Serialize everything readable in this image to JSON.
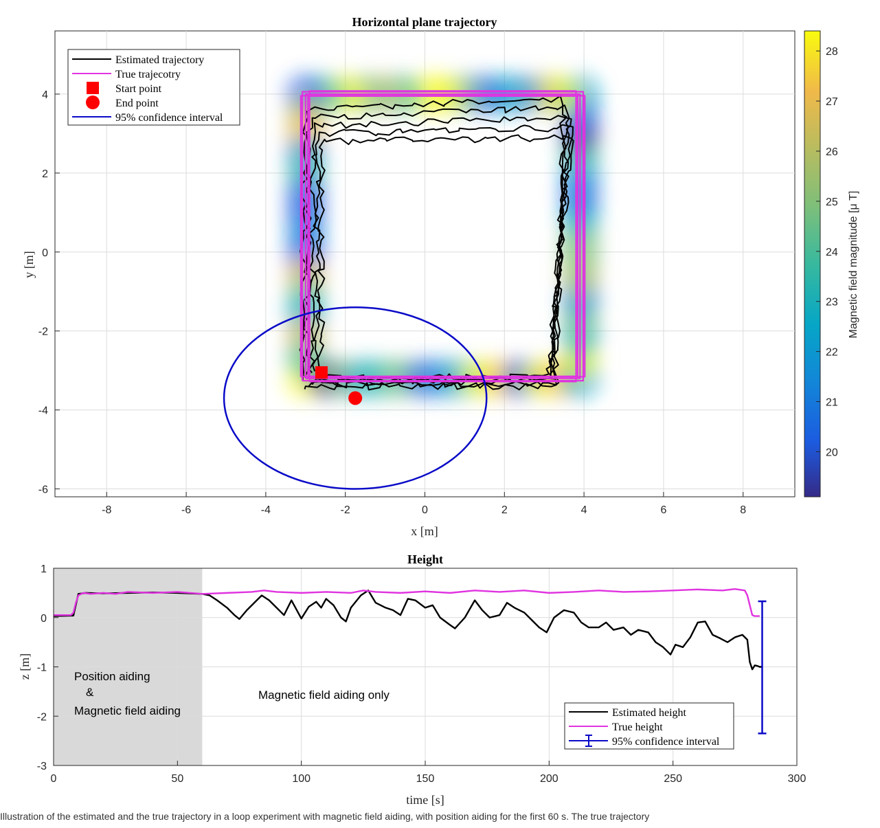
{
  "chart_data": [
    {
      "type": "scatter",
      "title": "Horizontal plane trajectory",
      "xlabel": "x [m]",
      "ylabel": "y [m]",
      "xlim": [
        -9.3,
        9.3
      ],
      "ylim": [
        -6.2,
        5.6
      ],
      "xticks": [
        "-8",
        "-6",
        "-4",
        "-2",
        "0",
        "2",
        "4",
        "6",
        "8"
      ],
      "yticks": [
        "-6",
        "-4",
        "-2",
        "0",
        "2",
        "4"
      ],
      "grid": true,
      "legend_position": "top-left",
      "legend": {
        "estimated": "Estimated trajectory",
        "true": "True trajecotry",
        "start": "Start point",
        "end": "End point",
        "ci": "95% confidence interval"
      },
      "colorbar": {
        "label": "Magnetic field magnitude [μ T]",
        "range": [
          19.1,
          28.4
        ],
        "ticks": [
          "20",
          "21",
          "22",
          "23",
          "24",
          "25",
          "26",
          "27",
          "28"
        ],
        "colormap": "parula"
      },
      "true_trajectory": [
        [
          -3.0,
          -3.2
        ],
        [
          3.9,
          -3.2
        ],
        [
          3.9,
          4.0
        ],
        [
          -3.0,
          4.0
        ],
        [
          -3.0,
          -3.2
        ]
      ],
      "start_point": [
        -2.6,
        -3.05
      ],
      "end_point": [
        -1.75,
        -3.7
      ],
      "confidence_ellipse": {
        "center": [
          -1.75,
          -3.7
        ],
        "semi_axis_x": 3.3,
        "semi_axis_y": 2.3
      },
      "colors": {
        "estimated": "#000000",
        "true": "#e033e0",
        "markers": "#ff0000",
        "ci": "#0a0ac8"
      }
    },
    {
      "type": "line",
      "title": "Height",
      "xlabel": "time [s]",
      "ylabel": "z [m]",
      "xlim": [
        0,
        300
      ],
      "ylim": [
        -3,
        1
      ],
      "xticks": [
        "0",
        "50",
        "100",
        "150",
        "200",
        "250",
        "300"
      ],
      "yticks": [
        "-3",
        "-2",
        "-1",
        "0",
        "1"
      ],
      "grid": true,
      "legend_position": "bottom-right",
      "series": [
        {
          "name": "Estimated height",
          "color": "#000000",
          "x": [
            0,
            8,
            10,
            13,
            20,
            30,
            40,
            50,
            60,
            63,
            66,
            70,
            73,
            75,
            78,
            82,
            84,
            87,
            90,
            93,
            96,
            100,
            103,
            106,
            108,
            110,
            113,
            116,
            118,
            120,
            124,
            127,
            130,
            134,
            137,
            140,
            143,
            146,
            150,
            153,
            156,
            160,
            162,
            166,
            170,
            173,
            176,
            180,
            183,
            186,
            190,
            193,
            196,
            199,
            202,
            206,
            210,
            213,
            216,
            220,
            223,
            226,
            230,
            233,
            236,
            240,
            243,
            246,
            249,
            251,
            254,
            257,
            260,
            263,
            266,
            269,
            272,
            275,
            278,
            280,
            281,
            282,
            283,
            284,
            285,
            286
          ],
          "values": [
            0.03,
            0.04,
            0.48,
            0.5,
            0.49,
            0.5,
            0.51,
            0.5,
            0.48,
            0.45,
            0.35,
            0.2,
            0.05,
            -0.03,
            0.15,
            0.35,
            0.45,
            0.35,
            0.2,
            0.05,
            0.35,
            -0.02,
            0.22,
            0.32,
            0.2,
            0.38,
            0.25,
            0.0,
            -0.08,
            0.2,
            0.45,
            0.55,
            0.3,
            0.2,
            0.15,
            0.05,
            0.38,
            0.35,
            0.2,
            0.25,
            0.0,
            -0.15,
            -0.22,
            0.0,
            0.35,
            0.15,
            0.0,
            0.05,
            0.3,
            0.2,
            0.1,
            -0.05,
            -0.2,
            -0.3,
            0.0,
            0.15,
            0.1,
            -0.1,
            -0.2,
            -0.2,
            -0.1,
            -0.25,
            -0.2,
            -0.35,
            -0.25,
            -0.3,
            -0.5,
            -0.6,
            -0.75,
            -0.55,
            -0.6,
            -0.4,
            -0.1,
            -0.08,
            -0.35,
            -0.42,
            -0.5,
            -0.4,
            -0.35,
            -0.45,
            -0.9,
            -1.05,
            -0.97,
            -0.98,
            -1.0,
            -1.0
          ]
        },
        {
          "name": "True height",
          "color": "#e033e0",
          "x": [
            0,
            7,
            8,
            9,
            10,
            12,
            15,
            20,
            25,
            30,
            40,
            50,
            60,
            70,
            80,
            85,
            90,
            100,
            110,
            120,
            125,
            130,
            140,
            150,
            160,
            170,
            180,
            190,
            200,
            210,
            220,
            230,
            240,
            250,
            260,
            270,
            275,
            279,
            280,
            281,
            282,
            283,
            285
          ],
          "values": [
            0.05,
            0.05,
            0.1,
            0.3,
            0.45,
            0.5,
            0.48,
            0.5,
            0.48,
            0.52,
            0.5,
            0.52,
            0.48,
            0.5,
            0.52,
            0.55,
            0.52,
            0.5,
            0.52,
            0.5,
            0.55,
            0.52,
            0.5,
            0.53,
            0.5,
            0.55,
            0.52,
            0.55,
            0.5,
            0.52,
            0.55,
            0.52,
            0.53,
            0.55,
            0.57,
            0.55,
            0.58,
            0.55,
            0.45,
            0.25,
            0.05,
            0.03,
            0.03
          ]
        }
      ],
      "confidence_interval": {
        "t": 286,
        "low": -2.35,
        "high": 0.33,
        "color": "#0a0ac8"
      },
      "shaded_region": {
        "x0": 0,
        "x1": 60,
        "color": "#d9d9d9"
      },
      "annotations": {
        "left_line1": "Position aiding",
        "left_line2": "&",
        "left_line3": "Magnetic field aiding",
        "right": "Magnetic field aiding only"
      },
      "legend": {
        "estimated": "Estimated height",
        "true": "True height",
        "ci": "95% confidence interval"
      }
    }
  ],
  "caption": "Illustration of the estimated and the true trajectory in a loop experiment with magnetic field aiding, with position aiding for the first 60 s. The true trajectory"
}
